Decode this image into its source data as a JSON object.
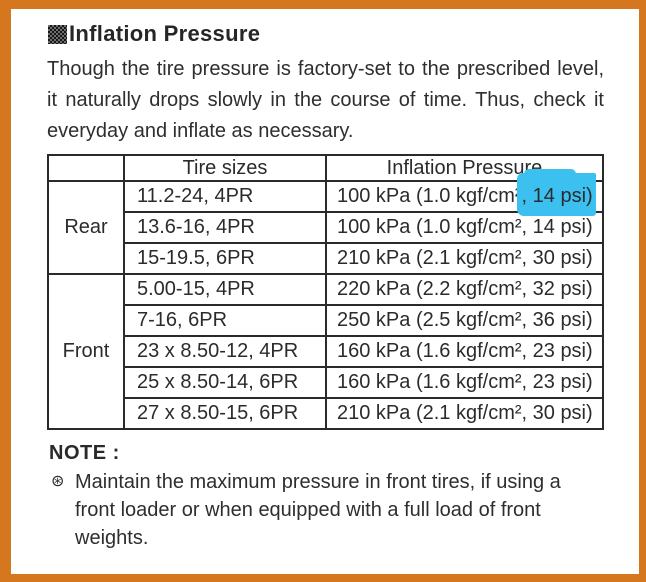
{
  "page": {
    "title": "Inflation Pressure",
    "intro": "Though the tire pressure is factory-set to the prescribed level, it naturally drops slowly in the course of time. Thus, check it everyday and inflate as necessary."
  },
  "table": {
    "headers": {
      "group": "",
      "tire_sizes": "Tire sizes",
      "inflation_pressure": "Inflation Pressure"
    },
    "groups": [
      {
        "label": "Rear",
        "rows": 3
      },
      {
        "label": "Front",
        "rows": 5
      }
    ],
    "rows": [
      {
        "group": "Rear",
        "size": "11.2-24, 4PR",
        "pressure_pre": "100 kPa (1.0 kgf/cm²",
        "pressure_highlighted": ", 14 psi)"
      },
      {
        "group": "Rear",
        "size": "13.6-16, 4PR",
        "pressure": "100 kPa (1.0 kgf/cm², 14 psi)"
      },
      {
        "group": "Rear",
        "size": "15-19.5, 6PR",
        "pressure": "210 kPa (2.1 kgf/cm², 30 psi)"
      },
      {
        "group": "Front",
        "size": "5.00-15, 4PR",
        "pressure": "220 kPa (2.2 kgf/cm², 32 psi)"
      },
      {
        "group": "Front",
        "size": "7-16, 6PR",
        "pressure": "250 kPa (2.5 kgf/cm², 36 psi)"
      },
      {
        "group": "Front",
        "size": "23 x 8.50-12, 4PR",
        "pressure": "160 kPa (1.6 kgf/cm², 23 psi)"
      },
      {
        "group": "Front",
        "size": "25 x 8.50-14, 6PR",
        "pressure": "160 kPa (1.6 kgf/cm², 23 psi)"
      },
      {
        "group": "Front",
        "size": "27 x 8.50-15, 6PR",
        "pressure": "210 kPa (2.1 kgf/cm², 30 psi)"
      }
    ]
  },
  "note": {
    "label": "NOTE :",
    "bullet": "⊛",
    "text": "Maintain the maximum pressure in front tires, if using a front loader or when equipped with a full load of front weights."
  },
  "colors": {
    "frame_orange": "#d5771e",
    "highlight_cyan": "#3cc0ef",
    "text": "#2d2d2d"
  }
}
